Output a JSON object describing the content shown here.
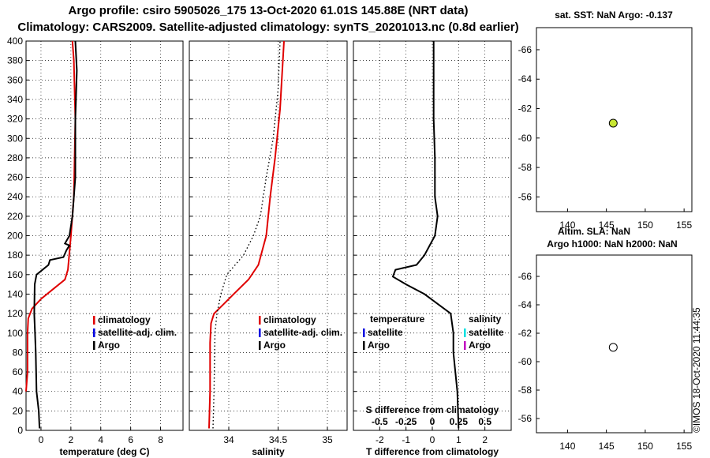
{
  "header": {
    "title_line1": "Argo profile: csiro 5905026_175 13-Oct-2020 61.01S 145.88E (NRT data)",
    "title_line2": "Climatology: CARS2009. Satellite-adjusted climatology: synTS_20201013.nc (0.8d earlier)"
  },
  "side_text": "©IMOS 18-Oct-2020 11:44:35",
  "colors": {
    "climatology": "#e00000",
    "satellite_adj": "#0000e0",
    "argo": "#000000",
    "sal_satellite": "#00e0e0",
    "sal_argo": "#c000c0",
    "sst_marker": "#c8e632",
    "sla_marker": "#ffffff"
  },
  "chart_data": [
    {
      "type": "line",
      "xlabel": "temperature (deg C)",
      "xlim": [
        -1,
        9.5
      ],
      "xticks": [
        0,
        2,
        4,
        6,
        8
      ],
      "xtick_labels": [
        "0",
        "2",
        "4",
        "6",
        "8"
      ],
      "ylim": [
        400,
        0
      ],
      "yticks": [
        0,
        20,
        40,
        60,
        80,
        100,
        120,
        140,
        160,
        180,
        200,
        220,
        240,
        260,
        280,
        300,
        320,
        340,
        360,
        380,
        400
      ],
      "ytick_labels": [
        "0",
        "20",
        "40",
        "60",
        "80",
        "100",
        "120",
        "140",
        "160",
        "180",
        "200",
        "220",
        "240",
        "260",
        "280",
        "300",
        "320",
        "340",
        "360",
        "380",
        "400"
      ],
      "grid": true,
      "legend": [
        "climatology",
        "satellite-adj. clim.",
        "Argo"
      ],
      "series": [
        {
          "name": "climatology",
          "style": "solid",
          "points": [
            [
              -1,
              40
            ],
            [
              -0.9,
              60
            ],
            [
              -0.9,
              100
            ],
            [
              -0.85,
              115
            ],
            [
              -0.6,
              125
            ],
            [
              0,
              135
            ],
            [
              0.8,
              145
            ],
            [
              1.6,
              155
            ],
            [
              1.8,
              165
            ],
            [
              2.0,
              200
            ],
            [
              2.2,
              240
            ],
            [
              2.3,
              320
            ],
            [
              2.2,
              380
            ],
            [
              2.1,
              400
            ]
          ]
        },
        {
          "name": "Argo",
          "style": "solid",
          "points": [
            [
              -0.1,
              2
            ],
            [
              -0.15,
              20
            ],
            [
              -0.3,
              40
            ],
            [
              -0.35,
              80
            ],
            [
              -0.4,
              100
            ],
            [
              -0.45,
              120
            ],
            [
              -0.42,
              150
            ],
            [
              -0.3,
              160
            ],
            [
              0.5,
              170
            ],
            [
              0.6,
              175
            ],
            [
              1.5,
              178
            ],
            [
              1.7,
              185
            ],
            [
              1.9,
              190
            ],
            [
              1.6,
              192
            ],
            [
              1.9,
              200
            ],
            [
              2.1,
              220
            ],
            [
              2.3,
              260
            ],
            [
              2.3,
              320
            ],
            [
              2.4,
              370
            ],
            [
              2.3,
              400
            ]
          ]
        }
      ]
    },
    {
      "type": "line",
      "xlabel": "salinity",
      "xlim": [
        33.6,
        35.2
      ],
      "xticks": [
        34,
        34.5,
        35
      ],
      "xtick_labels": [
        "34",
        "34.5",
        "35"
      ],
      "ylim": [
        400,
        0
      ],
      "yticks": [
        0,
        20,
        40,
        60,
        80,
        100,
        120,
        140,
        160,
        180,
        200,
        220,
        240,
        260,
        280,
        300,
        320,
        340,
        360,
        380,
        400
      ],
      "grid": true,
      "legend": [
        "climatology",
        "satellite-adj. clim.",
        "Argo"
      ],
      "series": [
        {
          "name": "climatology",
          "style": "solid",
          "points": [
            [
              33.8,
              2
            ],
            [
              33.81,
              40
            ],
            [
              33.81,
              90
            ],
            [
              33.82,
              110
            ],
            [
              33.85,
              120
            ],
            [
              33.95,
              130
            ],
            [
              34.05,
              140
            ],
            [
              34.2,
              155
            ],
            [
              34.3,
              170
            ],
            [
              34.38,
              200
            ],
            [
              34.42,
              240
            ],
            [
              34.47,
              280
            ],
            [
              34.52,
              330
            ],
            [
              34.56,
              400
            ]
          ]
        },
        {
          "name": "Argo",
          "style": "dotted",
          "points": [
            [
              33.84,
              2
            ],
            [
              33.85,
              40
            ],
            [
              33.86,
              100
            ],
            [
              33.88,
              120
            ],
            [
              33.92,
              140
            ],
            [
              33.98,
              160
            ],
            [
              34.15,
              180
            ],
            [
              34.25,
              200
            ],
            [
              34.32,
              220
            ],
            [
              34.38,
              260
            ],
            [
              34.45,
              300
            ],
            [
              34.5,
              350
            ],
            [
              34.52,
              400
            ]
          ]
        }
      ]
    },
    {
      "type": "line",
      "xlabel": "T difference from climatology",
      "xlim": [
        -3,
        3
      ],
      "xticks": [
        -2,
        -1,
        0,
        1,
        2
      ],
      "xtick_labels": [
        "-2",
        "-1",
        "0",
        "1",
        "2"
      ],
      "top_xlabel": "S difference from climatology",
      "top_xticks": [
        -0.5,
        -0.25,
        0,
        0.25,
        0.5
      ],
      "top_xtick_labels": [
        "-0.5",
        "-0.25",
        "0",
        "0.25",
        "0.5"
      ],
      "ylim": [
        400,
        0
      ],
      "yticks": [
        0,
        20,
        40,
        60,
        80,
        100,
        120,
        140,
        160,
        180,
        200,
        220,
        240,
        260,
        280,
        300,
        320,
        340,
        360,
        380,
        400
      ],
      "grid": true,
      "legend_left_title": "temperature",
      "legend_left": [
        "satellite",
        "Argo"
      ],
      "legend_right_title": "salinity",
      "legend_right": [
        "satellite",
        "Argo"
      ],
      "series": [
        {
          "name": "T difference",
          "style": "solid",
          "points": [
            [
              1,
              2
            ],
            [
              0.95,
              40
            ],
            [
              0.8,
              80
            ],
            [
              0.8,
              100
            ],
            [
              0.7,
              120
            ],
            [
              -0.3,
              140
            ],
            [
              -1,
              150
            ],
            [
              -1.5,
              158
            ],
            [
              -1.4,
              165
            ],
            [
              -0.6,
              170
            ],
            [
              -0.3,
              180
            ],
            [
              0.1,
              200
            ],
            [
              0.2,
              220
            ],
            [
              0.1,
              240
            ],
            [
              0.1,
              280
            ],
            [
              0.05,
              320
            ],
            [
              0.05,
              400
            ]
          ]
        }
      ]
    },
    {
      "type": "scatter",
      "title": "sat. SST: NaN Argo: -0.137",
      "xlim": [
        136,
        156
      ],
      "xticks": [
        140,
        145,
        150,
        155
      ],
      "xtick_labels": [
        "140",
        "145",
        "150",
        "155"
      ],
      "ylim": [
        -67.5,
        -55
      ],
      "yticks": [
        -56,
        -58,
        -60,
        -62,
        -64,
        -66
      ],
      "ytick_labels": [
        "-56",
        "-58",
        "-60",
        "-62",
        "-64",
        "-66"
      ],
      "points": [
        {
          "x": 145.88,
          "y": -61.01
        }
      ]
    },
    {
      "type": "scatter",
      "title": "Altim. SLA: NaN",
      "subtitle": "Argo h1000: NaN h2000: NaN",
      "xlim": [
        136,
        156
      ],
      "xticks": [
        140,
        145,
        150,
        155
      ],
      "xtick_labels": [
        "140",
        "145",
        "150",
        "155"
      ],
      "ylim": [
        -67.5,
        -55
      ],
      "yticks": [
        -56,
        -58,
        -60,
        -62,
        -64,
        -66
      ],
      "ytick_labels": [
        "-56",
        "-58",
        "-60",
        "-62",
        "-64",
        "-66"
      ],
      "points": [
        {
          "x": 145.88,
          "y": -61.01
        }
      ]
    }
  ]
}
